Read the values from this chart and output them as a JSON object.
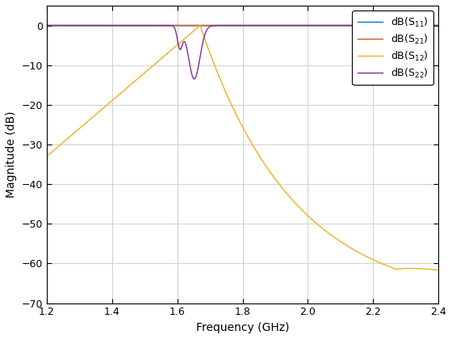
{
  "xlabel": "Frequency (GHz)",
  "ylabel": "Magnitude (dB)",
  "xlim": [
    1.2,
    2.4
  ],
  "ylim": [
    -70,
    5
  ],
  "yticks": [
    0,
    -10,
    -20,
    -30,
    -40,
    -50,
    -60,
    -70
  ],
  "xticks": [
    1.2,
    1.4,
    1.6,
    1.8,
    2.0,
    2.2,
    2.4
  ],
  "color_S11": "#0072BD",
  "color_S21": "#D95319",
  "color_S12": "#EDB120",
  "color_S22": "#7E2F8E",
  "figsize": [
    5.6,
    4.2
  ],
  "dpi": 100,
  "linewidth": 1.0,
  "grid_color": "#D3D3D3",
  "bg_color": "#FFFFFF"
}
